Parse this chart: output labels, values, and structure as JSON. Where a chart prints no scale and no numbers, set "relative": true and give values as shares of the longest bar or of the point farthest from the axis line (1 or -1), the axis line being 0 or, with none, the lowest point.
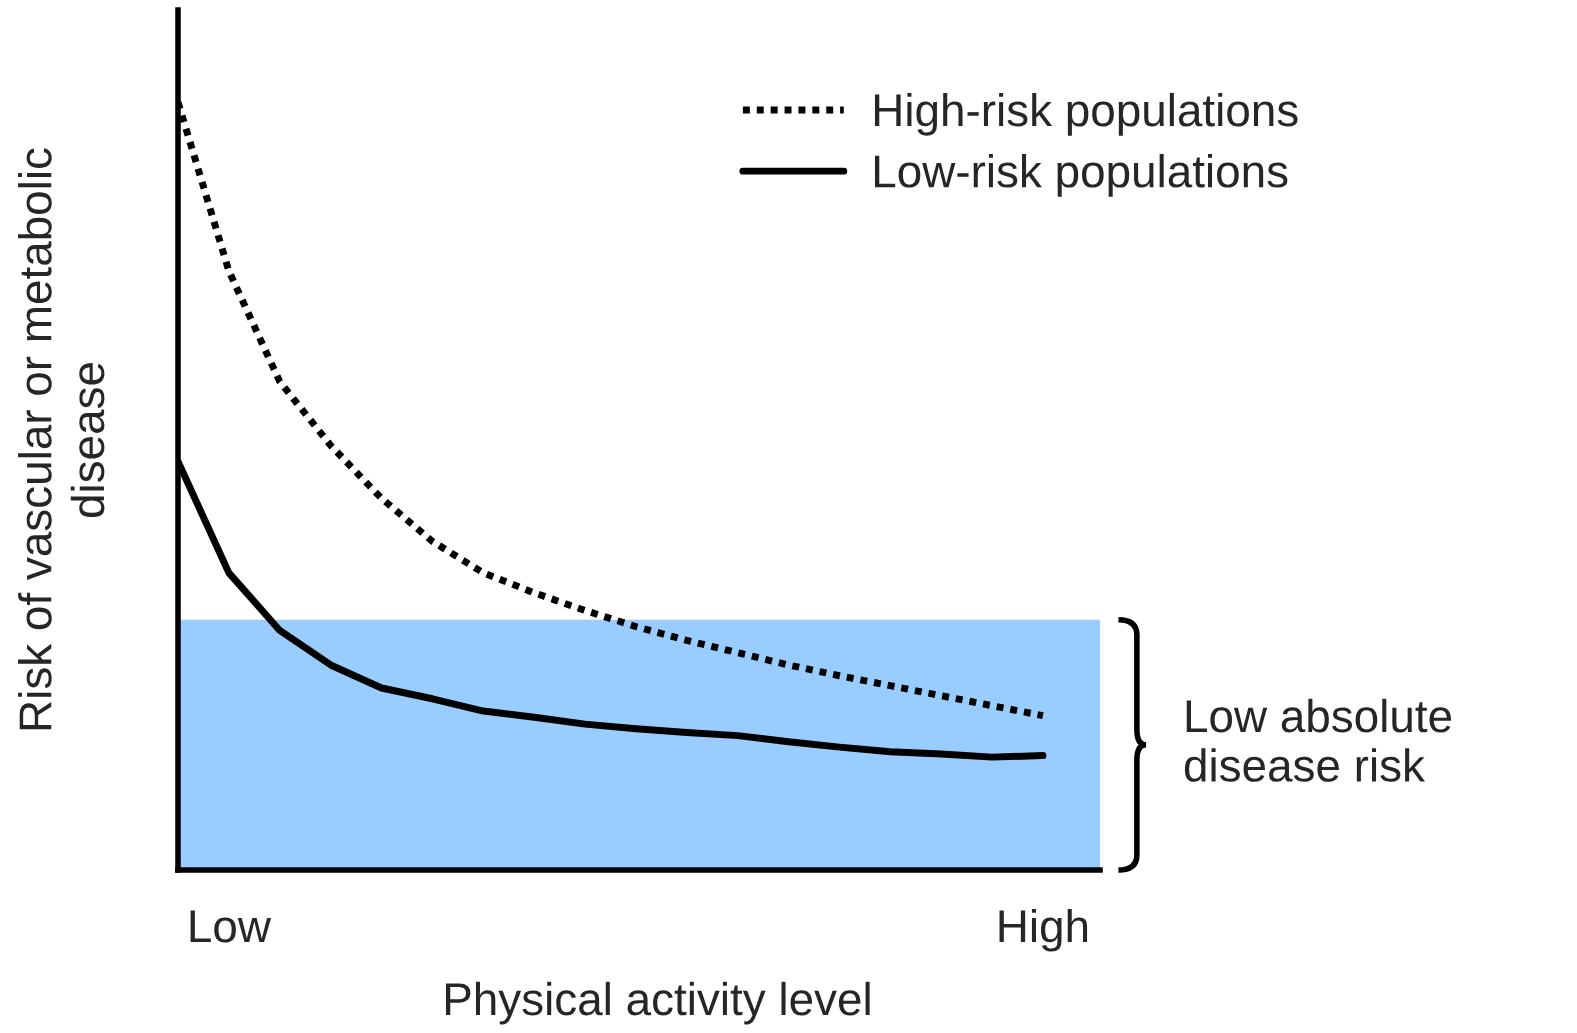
{
  "chart_data": {
    "type": "line",
    "relative": true,
    "xlabel": "Physical activity level",
    "ylabel": "Risk of vascular or metabolic\ndisease",
    "categories": [
      null,
      "Low",
      null,
      null,
      null,
      null,
      null,
      null,
      null,
      null,
      null,
      null,
      null,
      null,
      null,
      null,
      null,
      "High"
    ],
    "series": [
      {
        "name": "High-risk populations",
        "color": "#000000",
        "line_style": "dotted",
        "values": [
          1.0,
          0.78,
          0.636,
          0.553,
          0.484,
          0.428,
          0.387,
          0.361,
          0.338,
          0.317,
          0.299,
          0.283,
          0.267,
          0.253,
          0.24,
          0.227,
          0.214,
          0.201
        ]
      },
      {
        "name": "Low-risk populations",
        "color": "#000000",
        "line_style": "solid",
        "values": [
          0.532,
          0.387,
          0.312,
          0.267,
          0.237,
          0.223,
          0.207,
          0.199,
          0.19,
          0.184,
          0.179,
          0.175,
          0.167,
          0.16,
          0.154,
          0.151,
          0.147,
          0.149
        ]
      }
    ],
    "bands": [
      {
        "axis": "y",
        "from": 0,
        "to": 0.326,
        "label": "Low absolute\ndisease risk",
        "color": "#99ccff"
      }
    ],
    "legend": "top right",
    "grid": false,
    "marker": "none"
  }
}
